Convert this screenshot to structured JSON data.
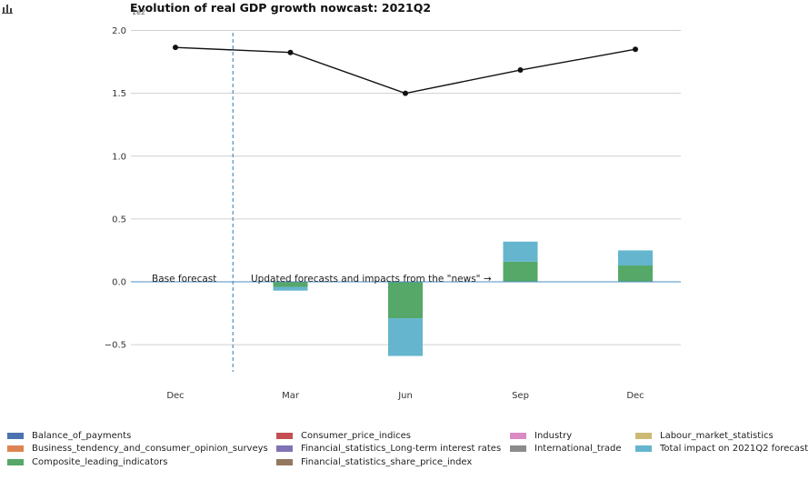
{
  "header": {
    "title": "Evolution of real GDP growth nowcast: 2021Q2",
    "unit": "1e2"
  },
  "chart_data": {
    "type": "bar",
    "categories": [
      "Dec",
      "Mar",
      "Jun",
      "Sep",
      "Dec"
    ],
    "ylim": [
      -0.72,
      2.0
    ],
    "yticks": [
      -0.5,
      0.0,
      0.5,
      1.0,
      1.5,
      2.0
    ],
    "ytick_labels": [
      "−0.5",
      "0.0",
      "0.5",
      "1.0",
      "1.5",
      "2.0"
    ],
    "grid": "horizontal",
    "line_series": {
      "values": [
        1.865,
        1.825,
        1.5,
        1.685,
        1.85
      ]
    },
    "bar_series": [
      {
        "name": "Composite_leading_indicators",
        "values": [
          0,
          -0.04,
          -0.29,
          0.16,
          0.13
        ]
      },
      {
        "name": "Total impact on 2021Q2 forecast",
        "values": [
          0,
          -0.03,
          -0.3,
          0.16,
          0.12
        ]
      }
    ],
    "annotations": {
      "base": "Base forecast",
      "updated": "Updated forecasts and impacts from the \"news\"  →"
    },
    "legend": {
      "position": "bottom",
      "entries": [
        {
          "name": "Balance_of_payments",
          "color": "#4c72b0"
        },
        {
          "name": "Business_tendency_and_consumer_opinion_surveys",
          "color": "#dd8452"
        },
        {
          "name": "Composite_leading_indicators",
          "color": "#55a868"
        },
        {
          "name": "Consumer_price_indices",
          "color": "#c44e52"
        },
        {
          "name": "Financial_statistics_Long-term interest rates",
          "color": "#8172b3"
        },
        {
          "name": "Financial_statistics_share_price_index",
          "color": "#937860"
        },
        {
          "name": "Industry",
          "color": "#da8bc3"
        },
        {
          "name": "International_trade",
          "color": "#8c8c8c"
        },
        {
          "name": "Labour_market_statistics",
          "color": "#ccb974"
        },
        {
          "name": "Total impact on 2021Q2 forecast",
          "color": "#64b5cd"
        }
      ]
    }
  }
}
